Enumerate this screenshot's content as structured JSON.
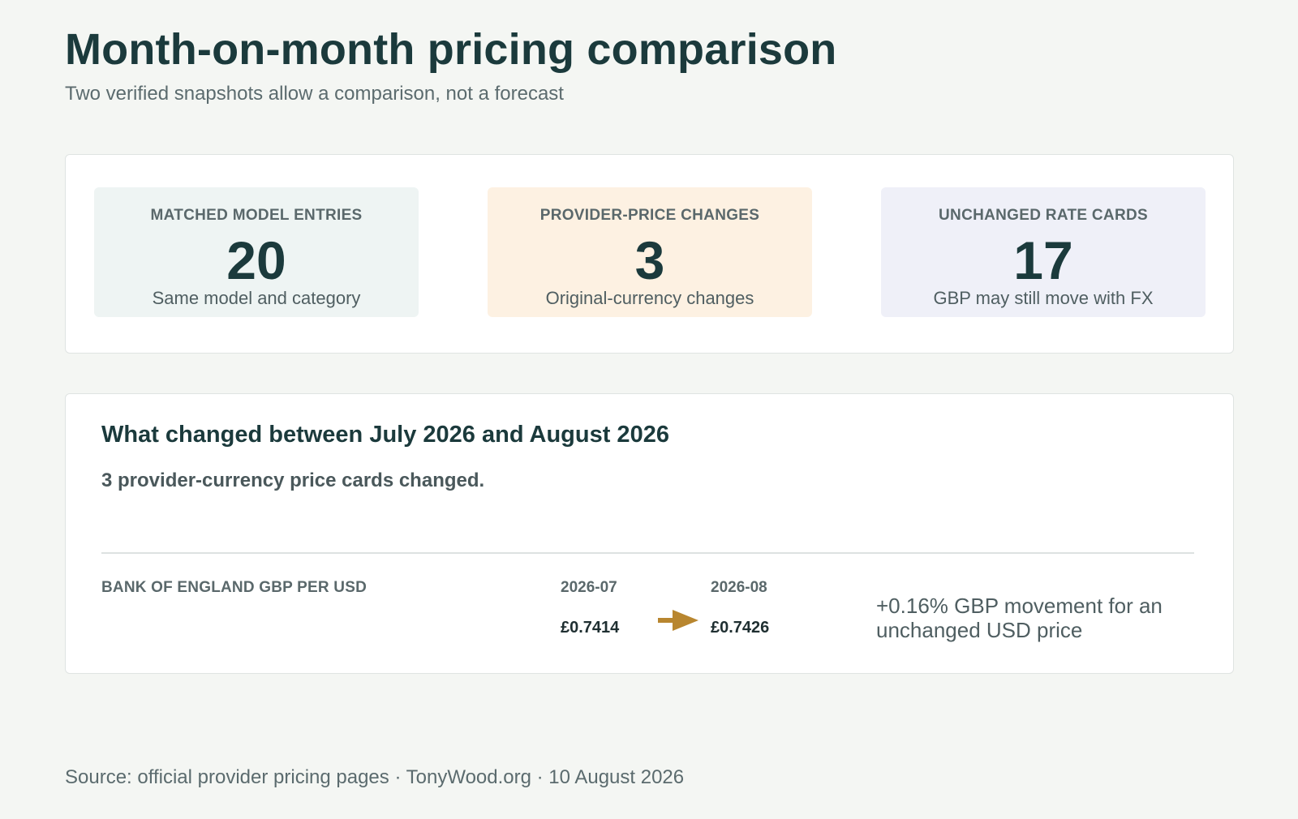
{
  "header": {
    "title": "Month-on-month pricing comparison",
    "subtitle": "Two verified snapshots allow a comparison, not a forecast"
  },
  "stats": [
    {
      "label": "MATCHED MODEL ENTRIES",
      "value": "20",
      "note": "Same model and category",
      "bg": "#eef4f3"
    },
    {
      "label": "PROVIDER-PRICE CHANGES",
      "value": "3",
      "note": "Original-currency changes",
      "bg": "#fdf1e2"
    },
    {
      "label": "UNCHANGED RATE CARDS",
      "value": "17",
      "note": "GBP may still move with FX",
      "bg": "#eff0f8"
    }
  ],
  "changes": {
    "heading": "What changed between July 2026 and August 2026",
    "summary": "3 provider-currency price cards changed.",
    "fx": {
      "label": "BANK OF ENGLAND GBP PER USD",
      "from_period": "2026-07",
      "to_period": "2026-08",
      "from_value": "£0.7414",
      "to_value": "£0.7426",
      "arrow_icon": "arrow-right-icon",
      "arrow_color": "#b8862f",
      "movement": "+0.16% GBP movement for an unchanged USD price"
    }
  },
  "footer": {
    "source": "Source: official provider pricing pages · TonyWood.org · 10 August 2026"
  }
}
